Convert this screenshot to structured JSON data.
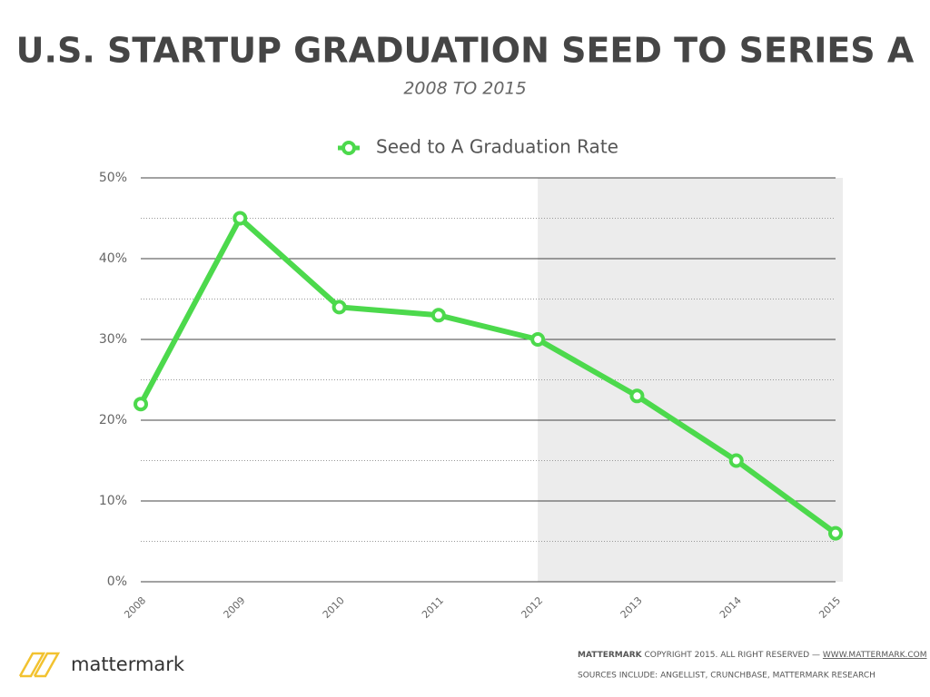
{
  "chart_data": {
    "type": "line",
    "title": "U.S. STARTUP GRADUATION SEED TO SERIES A",
    "subtitle": "2008 TO 2015",
    "categories": [
      "2008",
      "2009",
      "2010",
      "2011",
      "2012",
      "2013",
      "2014",
      "2015"
    ],
    "series": [
      {
        "name": "Seed to A Graduation Rate",
        "color": "#4cd94c",
        "values": [
          22,
          45,
          34,
          33,
          30,
          23,
          15,
          6
        ]
      }
    ],
    "ylim": [
      0,
      50
    ],
    "yticks": [
      {
        "value": 0,
        "label": "0%"
      },
      {
        "value": 10,
        "label": "10%"
      },
      {
        "value": 20,
        "label": "20%"
      },
      {
        "value": 30,
        "label": "30%"
      },
      {
        "value": 40,
        "label": "40%"
      },
      {
        "value": 50,
        "label": "50%"
      }
    ],
    "minor_yticks": [
      5,
      15,
      25,
      35,
      45
    ],
    "grid": true,
    "shaded_from": "2012",
    "legend": "top"
  },
  "footer": {
    "brand": "MATTERMARK",
    "copyright": "COPYRIGHT 2015. ALL RIGHT RESERVED —",
    "url": "WWW.MATTERMARK.COM",
    "sources": "SOURCES INCLUDE: ANGELLIST, CRUNCHBASE, MATTERMARK RESEARCH"
  },
  "logo": {
    "text": "mattermark"
  }
}
